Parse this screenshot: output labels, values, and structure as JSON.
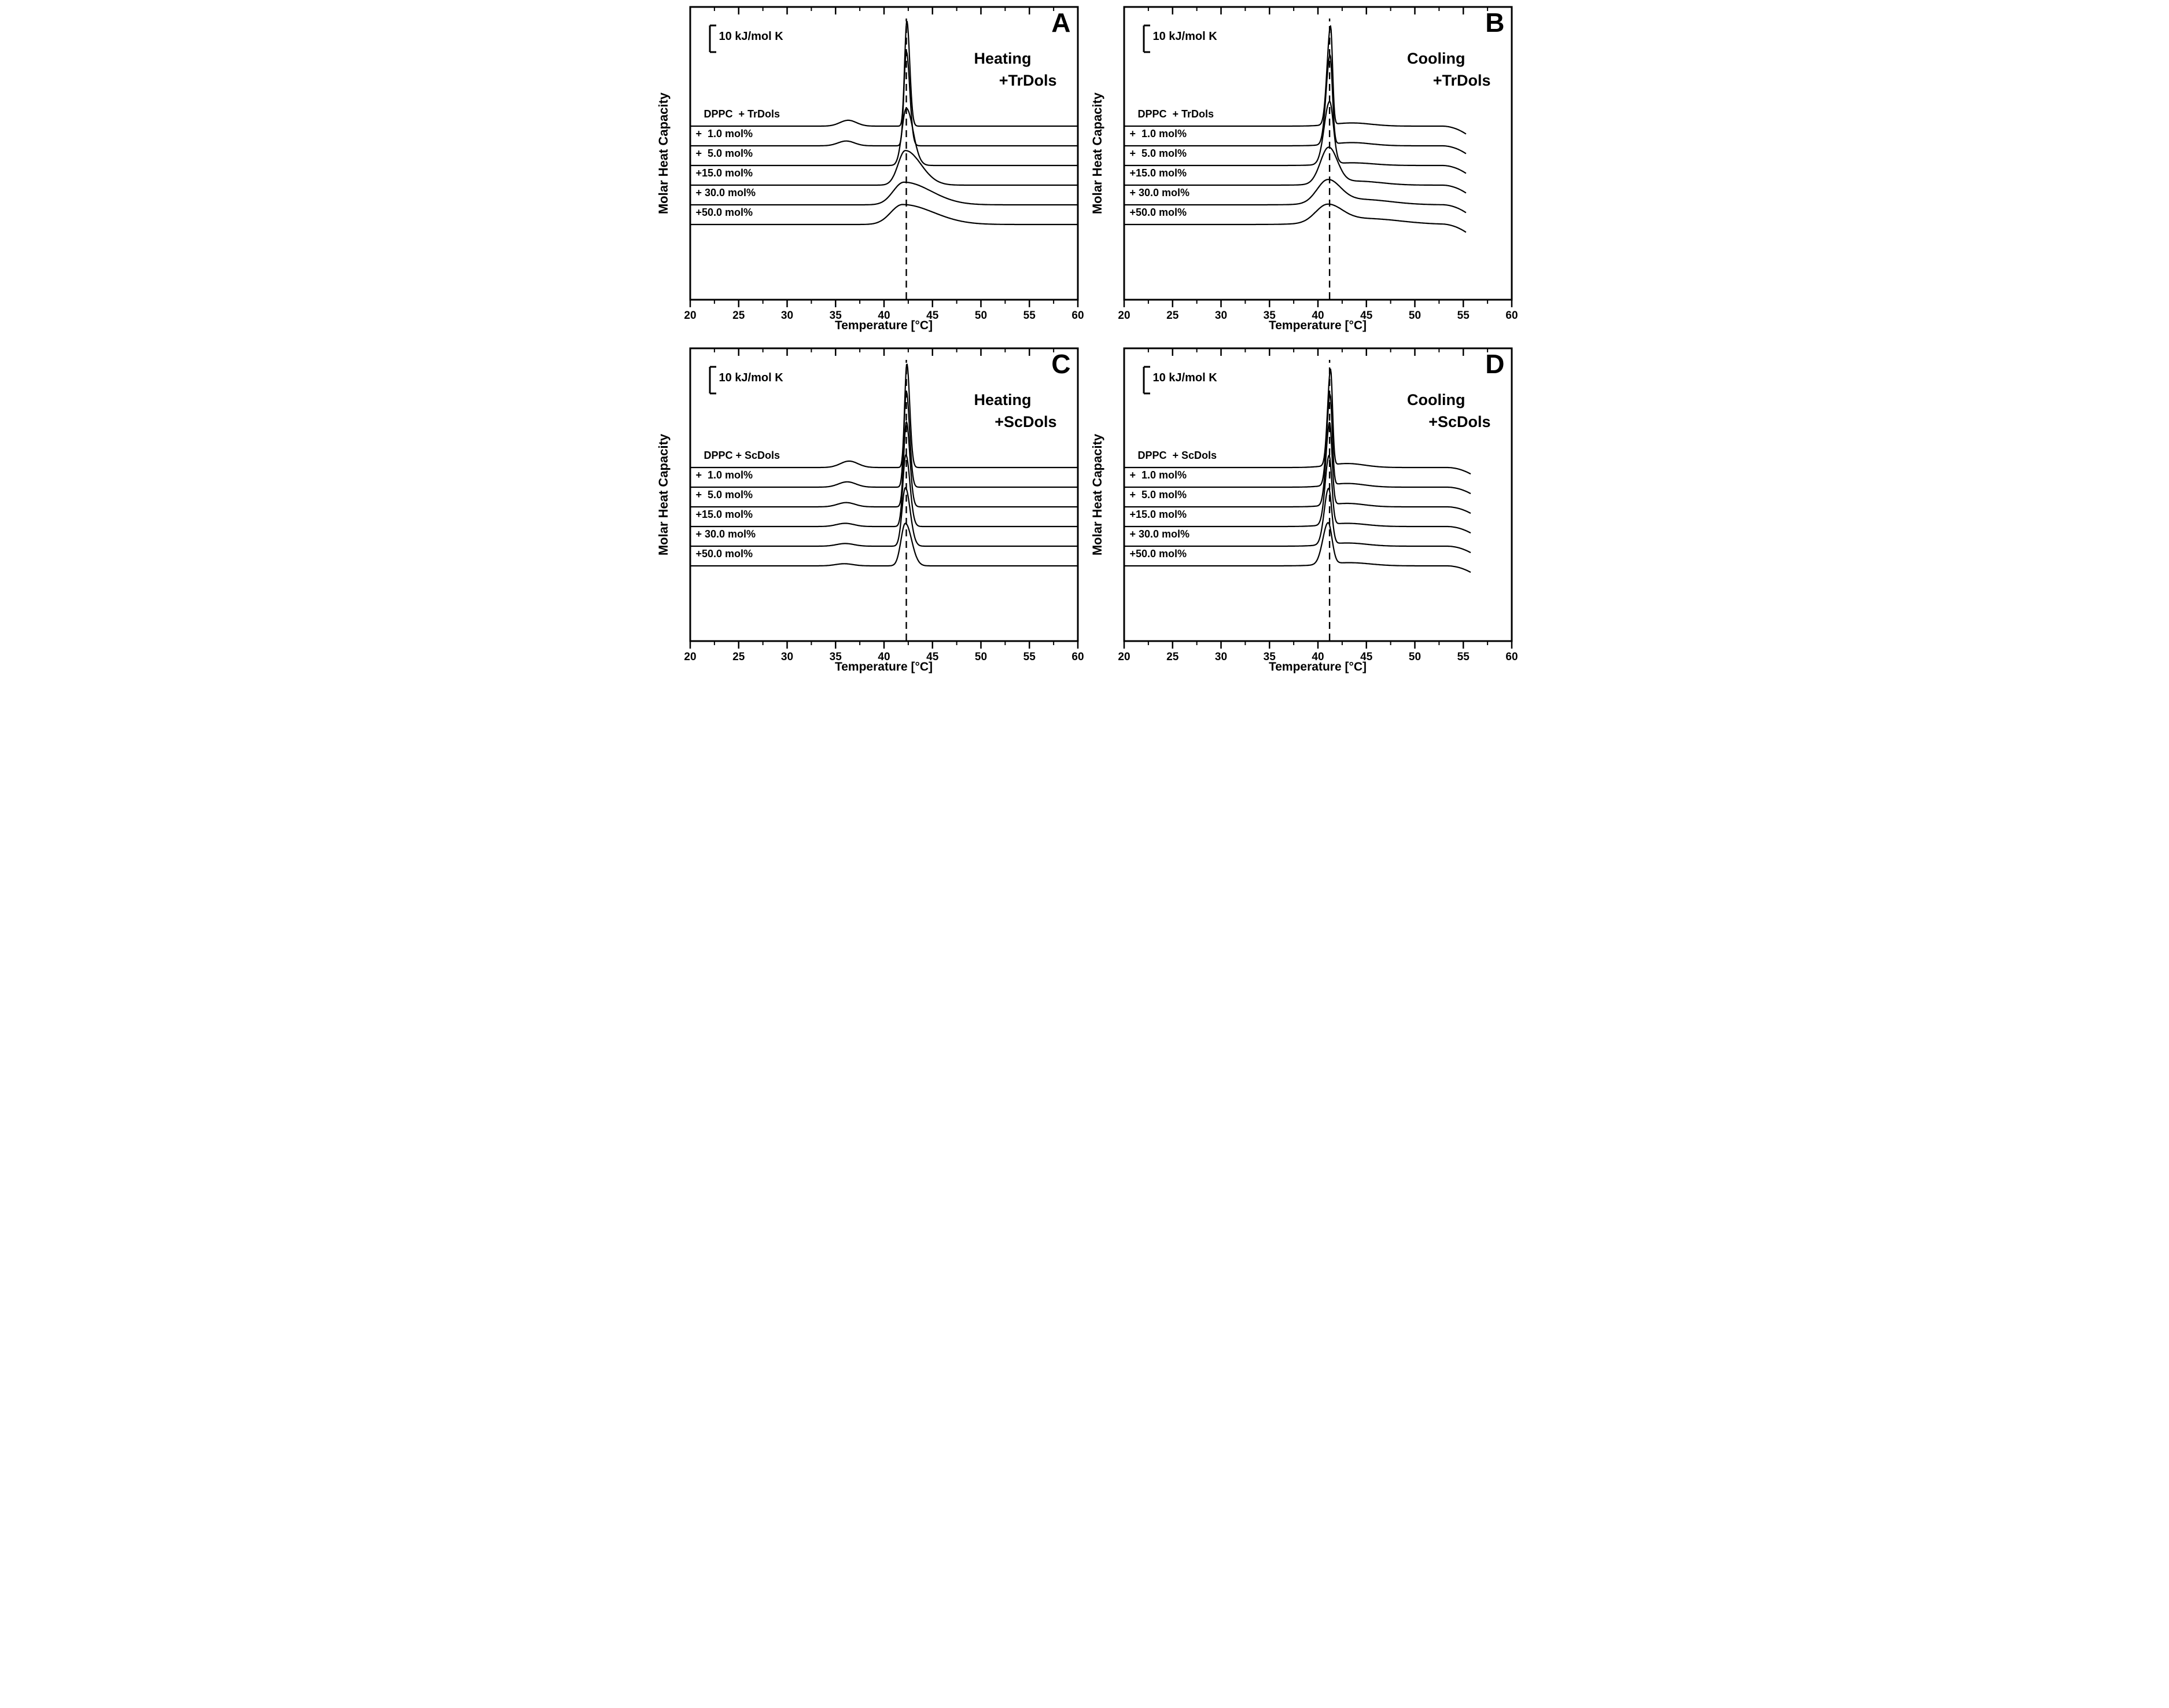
{
  "figure_type": "DSC thermograms, molar heat capacity vs temperature, 2x2 panels",
  "chart_data": [
    {
      "id": "A",
      "letter": "A",
      "mode": "Heating",
      "additive": "+TrDols",
      "type": "line",
      "xlabel": "Temperature [°C]",
      "ylabel": "Molar Heat Capacity",
      "scale_bar_label": "10 kJ/mol K",
      "scale_bar_kJ_per_molK": 10,
      "xlim": [
        20,
        60
      ],
      "x_ticks": [
        20,
        25,
        30,
        35,
        40,
        45,
        50,
        55,
        60
      ],
      "x_minor_tick_step": 2.5,
      "grid": false,
      "dashed_line_temp": 42.3,
      "series": [
        {
          "label": "DPPC  + TrDols",
          "peak_temp": 42.35,
          "peak_height_kJ": 39.5,
          "sigma_left": 0.22,
          "sigma_right": 0.3,
          "pretransition": {
            "temp": 36.3,
            "height_kJ": 2.2,
            "sigma": 0.85
          },
          "end_temp": 60
        },
        {
          "label": "+  1.0 mol%",
          "peak_temp": 42.3,
          "peak_height_kJ": 35.5,
          "sigma_left": 0.24,
          "sigma_right": 0.35,
          "pretransition": {
            "temp": 36.1,
            "height_kJ": 1.8,
            "sigma": 0.85
          },
          "end_temp": 60
        },
        {
          "label": "+  5.0 mol%",
          "peak_temp": 42.3,
          "peak_height_kJ": 21.5,
          "sigma_left": 0.45,
          "sigma_right": 0.7,
          "end_temp": 60
        },
        {
          "label": "+15.0 mol%",
          "peak_temp": 42.2,
          "peak_height_kJ": 13.0,
          "sigma_left": 0.75,
          "sigma_right": 1.6,
          "end_temp": 60
        },
        {
          "label": "+ 30.0 mol%",
          "peak_temp": 42.05,
          "peak_height_kJ": 8.5,
          "sigma_left": 1.1,
          "sigma_right": 2.8,
          "end_temp": 60
        },
        {
          "label": "+50.0 mol%",
          "peak_temp": 41.9,
          "peak_height_kJ": 7.5,
          "sigma_left": 1.2,
          "sigma_right": 3.2,
          "end_temp": 60
        }
      ]
    },
    {
      "id": "B",
      "letter": "B",
      "mode": "Cooling",
      "additive": "+TrDols",
      "type": "line",
      "xlabel": "Temperature [°C]",
      "ylabel": "Molar Heat Capacity",
      "scale_bar_label": "10 kJ/mol K",
      "scale_bar_kJ_per_molK": 10,
      "xlim": [
        20,
        60
      ],
      "x_ticks": [
        20,
        25,
        30,
        35,
        40,
        45,
        50,
        55,
        60
      ],
      "x_minor_tick_step": 2.5,
      "grid": false,
      "dashed_line_temp": 41.2,
      "series": [
        {
          "label": "DPPC  + TrDols",
          "peak_temp": 41.3,
          "peak_height_kJ": 37.0,
          "sigma_left": 0.35,
          "sigma_right": 0.2,
          "shoulder": {
            "temp": 43.5,
            "height_kJ": 1.2,
            "sigma": 2.0
          },
          "end_temp": 55.3,
          "end_drop_kJ": 3.0,
          "end_drop_span": 2.5
        },
        {
          "label": "+  1.0 mol%",
          "peak_temp": 41.25,
          "peak_height_kJ": 33.5,
          "sigma_left": 0.4,
          "sigma_right": 0.24,
          "shoulder": {
            "temp": 43.5,
            "height_kJ": 1.2,
            "sigma": 2.0
          },
          "end_temp": 55.3,
          "end_drop_kJ": 3.0,
          "end_drop_span": 2.5
        },
        {
          "label": "+  5.0 mol%",
          "peak_temp": 41.2,
          "peak_height_kJ": 23.5,
          "sigma_left": 0.55,
          "sigma_right": 0.4,
          "shoulder": {
            "temp": 43.5,
            "height_kJ": 1.0,
            "sigma": 2.2
          },
          "end_temp": 55.3,
          "end_drop_kJ": 3.0,
          "end_drop_span": 2.5
        },
        {
          "label": "+15.0 mol%",
          "peak_temp": 41.1,
          "peak_height_kJ": 13.5,
          "sigma_left": 0.85,
          "sigma_right": 0.9,
          "shoulder": {
            "temp": 44.0,
            "height_kJ": 1.5,
            "sigma": 2.5
          },
          "end_temp": 55.3,
          "end_drop_kJ": 3.0,
          "end_drop_span": 2.5
        },
        {
          "label": "+ 30.0 mol%",
          "peak_temp": 41.0,
          "peak_height_kJ": 8.5,
          "sigma_left": 1.1,
          "sigma_right": 1.3,
          "shoulder": {
            "temp": 44.5,
            "height_kJ": 2.0,
            "sigma": 3.0
          },
          "end_temp": 55.3,
          "end_drop_kJ": 3.0,
          "end_drop_span": 2.5
        },
        {
          "label": "+50.0 mol%",
          "peak_temp": 40.95,
          "peak_height_kJ": 6.5,
          "sigma_left": 1.2,
          "sigma_right": 1.5,
          "shoulder": {
            "temp": 45.0,
            "height_kJ": 2.2,
            "sigma": 3.5
          },
          "end_temp": 55.3,
          "end_drop_kJ": 3.0,
          "end_drop_span": 2.5
        }
      ]
    },
    {
      "id": "C",
      "letter": "C",
      "mode": "Heating",
      "additive": "+ScDols",
      "type": "line",
      "xlabel": "Temperature [°C]",
      "ylabel": "Molar Heat Capacity",
      "scale_bar_label": "10 kJ/mol K",
      "scale_bar_kJ_per_molK": 10,
      "xlim": [
        20,
        60
      ],
      "x_ticks": [
        20,
        25,
        30,
        35,
        40,
        45,
        50,
        55,
        60
      ],
      "x_minor_tick_step": 2.5,
      "grid": false,
      "dashed_line_temp": 42.3,
      "series": [
        {
          "label": "DPPC + ScDols",
          "peak_temp": 42.35,
          "peak_height_kJ": 39.0,
          "sigma_left": 0.22,
          "sigma_right": 0.3,
          "pretransition": {
            "temp": 36.4,
            "height_kJ": 2.4,
            "sigma": 0.9
          },
          "end_temp": 60
        },
        {
          "label": "+  1.0 mol%",
          "peak_temp": 42.3,
          "peak_height_kJ": 36.0,
          "sigma_left": 0.24,
          "sigma_right": 0.33,
          "pretransition": {
            "temp": 36.2,
            "height_kJ": 2.0,
            "sigma": 0.9
          },
          "end_temp": 60
        },
        {
          "label": "+  5.0 mol%",
          "peak_temp": 42.3,
          "peak_height_kJ": 32.0,
          "sigma_left": 0.26,
          "sigma_right": 0.36,
          "pretransition": {
            "temp": 36.1,
            "height_kJ": 1.6,
            "sigma": 0.9
          },
          "end_temp": 60
        },
        {
          "label": "+15.0 mol%",
          "peak_temp": 42.25,
          "peak_height_kJ": 27.0,
          "sigma_left": 0.3,
          "sigma_right": 0.42,
          "pretransition": {
            "temp": 36.0,
            "height_kJ": 1.2,
            "sigma": 0.9
          },
          "end_temp": 60
        },
        {
          "label": "+ 30.0 mol%",
          "peak_temp": 42.2,
          "peak_height_kJ": 22.0,
          "sigma_left": 0.35,
          "sigma_right": 0.5,
          "pretransition": {
            "temp": 36.0,
            "height_kJ": 1.0,
            "sigma": 0.9
          },
          "end_temp": 60
        },
        {
          "label": "+50.0 mol%",
          "peak_temp": 42.2,
          "peak_height_kJ": 16.0,
          "sigma_left": 0.45,
          "sigma_right": 0.65,
          "pretransition": {
            "temp": 35.9,
            "height_kJ": 0.8,
            "sigma": 0.9
          },
          "end_temp": 60
        }
      ]
    },
    {
      "id": "D",
      "letter": "D",
      "mode": "Cooling",
      "additive": "+ScDols",
      "type": "line",
      "xlabel": "Temperature [°C]",
      "ylabel": "Molar Heat Capacity",
      "scale_bar_label": "10 kJ/mol K",
      "scale_bar_kJ_per_molK": 10,
      "xlim": [
        20,
        60
      ],
      "x_ticks": [
        20,
        25,
        30,
        35,
        40,
        45,
        50,
        55,
        60
      ],
      "x_minor_tick_step": 2.5,
      "grid": false,
      "dashed_line_temp": 41.2,
      "series": [
        {
          "label": "DPPC  + ScDols",
          "peak_temp": 41.3,
          "peak_height_kJ": 36.0,
          "sigma_left": 0.3,
          "sigma_right": 0.2,
          "shoulder": {
            "temp": 43.0,
            "height_kJ": 1.5,
            "sigma": 1.8
          },
          "end_temp": 55.8,
          "end_drop_kJ": 2.5,
          "end_drop_span": 2.5
        },
        {
          "label": "+  1.0 mol%",
          "peak_temp": 41.25,
          "peak_height_kJ": 34.0,
          "sigma_left": 0.33,
          "sigma_right": 0.22,
          "shoulder": {
            "temp": 43.0,
            "height_kJ": 1.4,
            "sigma": 1.8
          },
          "end_temp": 55.8,
          "end_drop_kJ": 2.5,
          "end_drop_span": 2.5
        },
        {
          "label": "+  5.0 mol%",
          "peak_temp": 41.2,
          "peak_height_kJ": 31.0,
          "sigma_left": 0.36,
          "sigma_right": 0.25,
          "shoulder": {
            "temp": 43.0,
            "height_kJ": 1.3,
            "sigma": 1.8
          },
          "end_temp": 55.8,
          "end_drop_kJ": 2.5,
          "end_drop_span": 2.5
        },
        {
          "label": "+15.0 mol%",
          "peak_temp": 41.15,
          "peak_height_kJ": 26.0,
          "sigma_left": 0.4,
          "sigma_right": 0.28,
          "shoulder": {
            "temp": 43.0,
            "height_kJ": 1.2,
            "sigma": 2.0
          },
          "end_temp": 55.8,
          "end_drop_kJ": 2.5,
          "end_drop_span": 2.5
        },
        {
          "label": "+ 30.0 mol%",
          "peak_temp": 41.1,
          "peak_height_kJ": 21.0,
          "sigma_left": 0.45,
          "sigma_right": 0.32,
          "shoulder": {
            "temp": 43.0,
            "height_kJ": 1.2,
            "sigma": 2.0
          },
          "end_temp": 55.8,
          "end_drop_kJ": 2.5,
          "end_drop_span": 2.5
        },
        {
          "label": "+50.0 mol%",
          "peak_temp": 41.05,
          "peak_height_kJ": 15.5,
          "sigma_left": 0.55,
          "sigma_right": 0.4,
          "shoulder": {
            "temp": 43.2,
            "height_kJ": 1.2,
            "sigma": 2.2
          },
          "end_temp": 55.8,
          "end_drop_kJ": 2.5,
          "end_drop_span": 2.5
        }
      ]
    }
  ],
  "colors": {
    "curve": "#000000",
    "axis": "#000000",
    "background": "#ffffff"
  }
}
